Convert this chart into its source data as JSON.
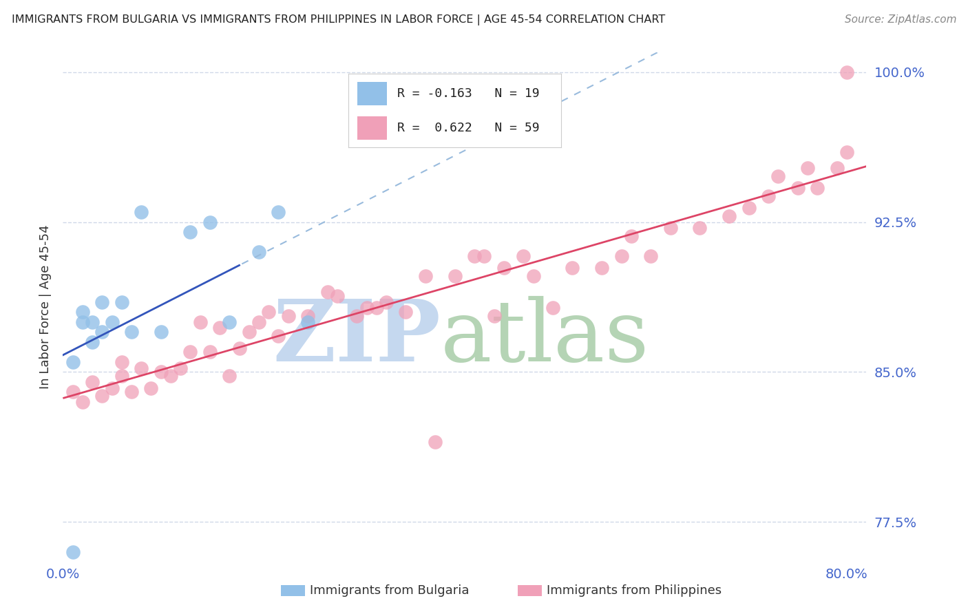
{
  "title": "IMMIGRANTS FROM BULGARIA VS IMMIGRANTS FROM PHILIPPINES IN LABOR FORCE | AGE 45-54 CORRELATION CHART",
  "source": "Source: ZipAtlas.com",
  "ylabel": "In Labor Force | Age 45-54",
  "xlim": [
    0.0,
    0.82
  ],
  "ylim": [
    0.755,
    1.01
  ],
  "bg_color": "#ffffff",
  "grid_color": "#d0d8e8",
  "watermark_zip_color": "#c5d8ef",
  "watermark_atlas_color": "#b5d4b5",
  "bulgaria_scatter_color": "#92c0e8",
  "philippines_scatter_color": "#f0a0b8",
  "bulgaria_line_color": "#3355bb",
  "bulgaria_dash_color": "#99bbdd",
  "philippines_line_color": "#dd4466",
  "R_bulgaria": -0.163,
  "N_bulgaria": 19,
  "R_philippines": 0.622,
  "N_philippines": 59,
  "tick_color": "#4466cc",
  "title_color": "#222222",
  "source_color": "#888888",
  "ytick_positions": [
    1.0,
    0.925,
    0.85,
    0.775
  ],
  "ytick_labels": [
    "100.0%",
    "92.5%",
    "85.0%",
    "77.5%"
  ],
  "xtick_positions": [
    0.0,
    0.1,
    0.2,
    0.3,
    0.4,
    0.5,
    0.6,
    0.7,
    0.8
  ],
  "xtick_labels": [
    "0.0%",
    "",
    "",
    "",
    "",
    "",
    "",
    "",
    "80.0%"
  ],
  "bulgaria_x": [
    0.01,
    0.02,
    0.02,
    0.03,
    0.03,
    0.04,
    0.04,
    0.05,
    0.06,
    0.07,
    0.08,
    0.1,
    0.13,
    0.15,
    0.17,
    0.2,
    0.22,
    0.25,
    0.01
  ],
  "bulgaria_y": [
    0.855,
    0.875,
    0.88,
    0.865,
    0.875,
    0.87,
    0.885,
    0.875,
    0.885,
    0.87,
    0.93,
    0.87,
    0.92,
    0.925,
    0.875,
    0.91,
    0.93,
    0.875,
    0.76
  ],
  "philippines_x": [
    0.01,
    0.02,
    0.03,
    0.04,
    0.05,
    0.06,
    0.06,
    0.07,
    0.08,
    0.09,
    0.1,
    0.11,
    0.12,
    0.13,
    0.14,
    0.15,
    0.16,
    0.17,
    0.18,
    0.19,
    0.2,
    0.21,
    0.22,
    0.23,
    0.25,
    0.27,
    0.28,
    0.3,
    0.31,
    0.32,
    0.33,
    0.35,
    0.37,
    0.38,
    0.4,
    0.42,
    0.43,
    0.44,
    0.45,
    0.47,
    0.48,
    0.5,
    0.52,
    0.55,
    0.57,
    0.58,
    0.6,
    0.62,
    0.65,
    0.68,
    0.7,
    0.72,
    0.73,
    0.75,
    0.76,
    0.77,
    0.79,
    0.8,
    0.8
  ],
  "philippines_y": [
    0.84,
    0.835,
    0.845,
    0.838,
    0.842,
    0.848,
    0.855,
    0.84,
    0.852,
    0.842,
    0.85,
    0.848,
    0.852,
    0.86,
    0.875,
    0.86,
    0.872,
    0.848,
    0.862,
    0.87,
    0.875,
    0.88,
    0.868,
    0.878,
    0.878,
    0.89,
    0.888,
    0.878,
    0.882,
    0.882,
    0.885,
    0.88,
    0.898,
    0.815,
    0.898,
    0.908,
    0.908,
    0.878,
    0.902,
    0.908,
    0.898,
    0.882,
    0.902,
    0.902,
    0.908,
    0.918,
    0.908,
    0.922,
    0.922,
    0.928,
    0.932,
    0.938,
    0.948,
    0.942,
    0.952,
    0.942,
    0.952,
    0.96,
    1.0
  ]
}
